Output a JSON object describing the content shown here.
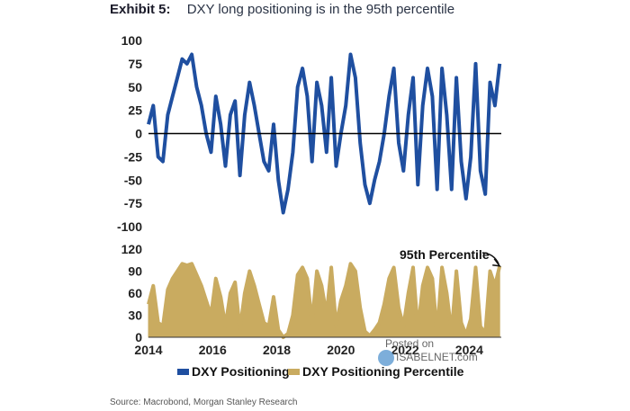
{
  "title": {
    "exhibit": "Exhibit 5:",
    "text": "DXY long positioning is in the 95th percentile"
  },
  "source": "Source: Macrobond, Morgan Stanley Research",
  "watermark": {
    "line1": "Posted on",
    "line2": "ISABELNET.com"
  },
  "colors": {
    "positioning": "#1f4fa0",
    "percentile": "#c9ab60",
    "zero_line": "#000000"
  },
  "chart_data": [
    {
      "type": "line",
      "name": "DXY Positioning",
      "x_range": [
        2014,
        2025
      ],
      "ylim": [
        -100,
        100
      ],
      "yticks": [
        100,
        75,
        50,
        25,
        0,
        -25,
        -50,
        -75,
        -100
      ],
      "x": [
        2014.0,
        2014.15,
        2014.3,
        2014.45,
        2014.6,
        2014.75,
        2014.9,
        2015.05,
        2015.2,
        2015.35,
        2015.5,
        2015.65,
        2015.8,
        2015.95,
        2016.1,
        2016.25,
        2016.4,
        2016.55,
        2016.7,
        2016.85,
        2017.0,
        2017.15,
        2017.3,
        2017.45,
        2017.6,
        2017.75,
        2017.9,
        2018.05,
        2018.2,
        2018.35,
        2018.5,
        2018.65,
        2018.8,
        2018.95,
        2019.1,
        2019.25,
        2019.4,
        2019.55,
        2019.7,
        2019.85,
        2020.0,
        2020.15,
        2020.3,
        2020.45,
        2020.6,
        2020.75,
        2020.9,
        2021.05,
        2021.2,
        2021.35,
        2021.5,
        2021.65,
        2021.8,
        2021.95,
        2022.1,
        2022.25,
        2022.4,
        2022.55,
        2022.7,
        2022.85,
        2023.0,
        2023.15,
        2023.3,
        2023.45,
        2023.6,
        2023.75,
        2023.9,
        2024.05,
        2024.2,
        2024.35,
        2024.5,
        2024.65,
        2024.8,
        2024.95
      ],
      "y": [
        10,
        30,
        -25,
        -30,
        20,
        40,
        60,
        80,
        75,
        85,
        50,
        30,
        0,
        -20,
        40,
        10,
        -35,
        20,
        35,
        -45,
        20,
        55,
        30,
        0,
        -30,
        -40,
        10,
        -50,
        -85,
        -60,
        -20,
        50,
        70,
        40,
        -30,
        55,
        30,
        -20,
        60,
        -35,
        0,
        30,
        85,
        60,
        -10,
        -55,
        -75,
        -50,
        -30,
        0,
        40,
        70,
        -10,
        -40,
        20,
        60,
        -55,
        30,
        70,
        40,
        -60,
        70,
        20,
        -60,
        60,
        -30,
        -70,
        -25,
        75,
        -40,
        -65,
        55,
        30,
        75
      ]
    },
    {
      "type": "area",
      "name": "DXY Positioning Percentile",
      "x_range": [
        2014,
        2025
      ],
      "ylim": [
        0,
        120
      ],
      "yticks": [
        120,
        90,
        60,
        30,
        0
      ],
      "xticks": [
        "2014",
        "2016",
        "2018",
        "2020",
        "2022",
        "2024"
      ],
      "x": [
        2014.0,
        2014.15,
        2014.3,
        2014.45,
        2014.6,
        2014.75,
        2014.9,
        2015.05,
        2015.2,
        2015.35,
        2015.5,
        2015.65,
        2015.8,
        2015.95,
        2016.1,
        2016.25,
        2016.4,
        2016.55,
        2016.7,
        2016.85,
        2017.0,
        2017.15,
        2017.3,
        2017.45,
        2017.6,
        2017.75,
        2017.9,
        2018.05,
        2018.2,
        2018.35,
        2018.5,
        2018.65,
        2018.8,
        2018.95,
        2019.1,
        2019.25,
        2019.4,
        2019.55,
        2019.7,
        2019.85,
        2020.0,
        2020.15,
        2020.3,
        2020.45,
        2020.6,
        2020.75,
        2020.9,
        2021.05,
        2021.2,
        2021.35,
        2021.5,
        2021.65,
        2021.8,
        2021.95,
        2022.1,
        2022.25,
        2022.4,
        2022.55,
        2022.7,
        2022.85,
        2023.0,
        2023.15,
        2023.3,
        2023.45,
        2023.6,
        2023.75,
        2023.9,
        2024.05,
        2024.2,
        2024.35,
        2024.5,
        2024.65,
        2024.8,
        2024.95
      ],
      "y": [
        45,
        70,
        20,
        15,
        65,
        80,
        90,
        100,
        98,
        100,
        85,
        70,
        50,
        30,
        80,
        55,
        15,
        60,
        75,
        10,
        60,
        90,
        70,
        45,
        20,
        15,
        55,
        10,
        0,
        5,
        30,
        85,
        95,
        80,
        20,
        90,
        70,
        30,
        95,
        15,
        50,
        70,
        100,
        90,
        40,
        8,
        2,
        10,
        20,
        45,
        80,
        95,
        40,
        15,
        60,
        95,
        10,
        70,
        95,
        80,
        5,
        95,
        60,
        5,
        90,
        20,
        3,
        25,
        95,
        15,
        5,
        90,
        70,
        97
      ]
    }
  ],
  "legend": {
    "items": [
      "DXY Positioning",
      "DXY Positioning Percentile"
    ],
    "placement": "bottom"
  },
  "annotation": {
    "text": "95th Percentile"
  }
}
